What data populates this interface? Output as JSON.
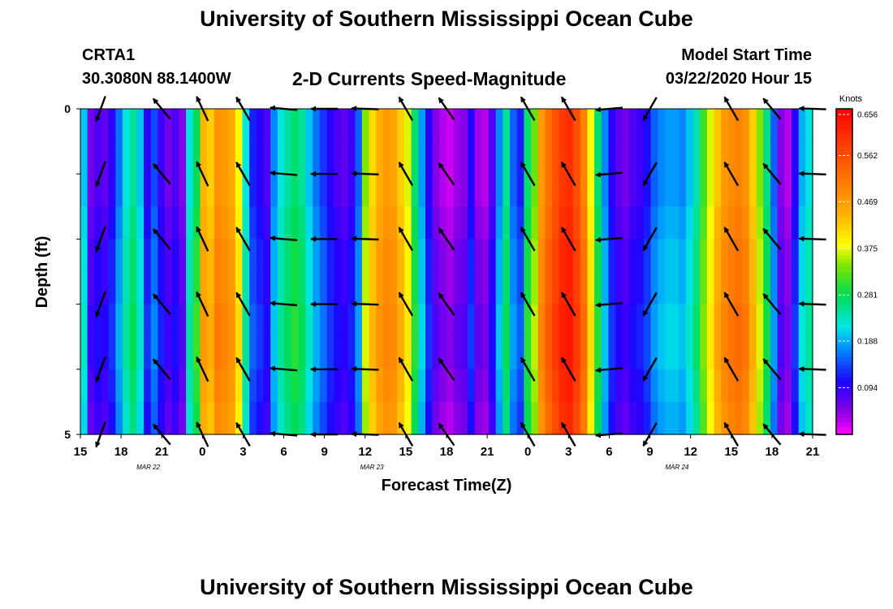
{
  "header": {
    "title": "University of Southern Mississippi Ocean Cube",
    "station_id": "CRTA1",
    "station_coords": "30.3080N 88.1400W",
    "model_start_label": "Model Start Time",
    "model_start_value": "03/22/2020 Hour 15"
  },
  "footer": {
    "title": "University of Southern Mississippi Ocean Cube"
  },
  "chart_data": {
    "type": "heatmap",
    "title": "2-D Currents Speed-Magnitude",
    "xlabel": "Forecast Time(Z)",
    "ylabel": "Depth (ft)",
    "x_unit": "hours since 03/22/2020 15Z",
    "x_range": [
      0,
      54
    ],
    "y_range": [
      0,
      5
    ],
    "x_tick_labels": [
      "15",
      "18",
      "21",
      "0",
      "3",
      "6",
      "9",
      "12",
      "15",
      "18",
      "21",
      "0",
      "3",
      "6",
      "9",
      "12",
      "15",
      "18",
      "21"
    ],
    "y_tick_labels": [
      "0",
      "5"
    ],
    "date_labels": [
      {
        "hour": 5,
        "text": "MAR 22"
      },
      {
        "hour": 21.5,
        "text": "MAR 23"
      },
      {
        "hour": 44,
        "text": "MAR 24"
      }
    ],
    "colorbar": {
      "unit": "Knots",
      "min": 0,
      "max": 0.656,
      "ticks": [
        "0.656",
        "0.562",
        "0.469",
        "0.375",
        "0.281",
        "0.188",
        "0.094"
      ]
    },
    "column_speeds": [
      0.2,
      0.06,
      0.08,
      0.07,
      0.1,
      0.16,
      0.22,
      0.25,
      0.2,
      0.1,
      0.14,
      0.09,
      0.06,
      0.08,
      0.05,
      0.22,
      0.28,
      0.44,
      0.42,
      0.48,
      0.47,
      0.45,
      0.38,
      0.22,
      0.12,
      0.1,
      0.08,
      0.17,
      0.22,
      0.25,
      0.27,
      0.25,
      0.2,
      0.16,
      0.13,
      0.1,
      0.08,
      0.07,
      0.09,
      0.15,
      0.34,
      0.41,
      0.45,
      0.47,
      0.46,
      0.42,
      0.37,
      0.27,
      0.18,
      0.1,
      0.05,
      0.03,
      0.02,
      0.04,
      0.05,
      0.1,
      0.04,
      0.03,
      0.08,
      0.17,
      0.25,
      0.15,
      0.12,
      0.27,
      0.33,
      0.47,
      0.52,
      0.56,
      0.59,
      0.6,
      0.56,
      0.5,
      0.38,
      0.27,
      0.17,
      0.1,
      0.07,
      0.06,
      0.08,
      0.09,
      0.11,
      0.15,
      0.17,
      0.18,
      0.18,
      0.17,
      0.2,
      0.24,
      0.31,
      0.37,
      0.43,
      0.47,
      0.49,
      0.5,
      0.48,
      0.42,
      0.34,
      0.26,
      0.15,
      0.05,
      0.03,
      0.1,
      0.19,
      0.22
    ],
    "depth_rows": [
      "0-0.5",
      "0.5-1",
      "1-1.5",
      "1.5-2",
      "2-2.5",
      "2.5-3",
      "3-3.5",
      "3.5-4",
      "4-4.5",
      "4.5-5"
    ],
    "row_speed_adjust": [
      0.0,
      0.0,
      0.0,
      0.01,
      0.02,
      0.02,
      0.03,
      0.03,
      0.02,
      0.01
    ],
    "vector_depths_ft": [
      0,
      1,
      2,
      3,
      4,
      5
    ],
    "vectors": [
      {
        "hour": 1.5,
        "dir_deg": 200,
        "speed": 0.35
      },
      {
        "hour": 6.0,
        "dir_deg": 320,
        "speed": 0.32
      },
      {
        "hour": 9.0,
        "dir_deg": 335,
        "speed": 0.4
      },
      {
        "hour": 12.0,
        "dir_deg": 330,
        "speed": 0.38
      },
      {
        "hour": 15.0,
        "dir_deg": 275,
        "speed": 0.4
      },
      {
        "hour": 18.0,
        "dir_deg": 270,
        "speed": 0.4
      },
      {
        "hour": 21.0,
        "dir_deg": 272,
        "speed": 0.4
      },
      {
        "hour": 24.0,
        "dir_deg": 330,
        "speed": 0.38
      },
      {
        "hour": 27.0,
        "dir_deg": 325,
        "speed": 0.36
      },
      {
        "hour": 33.0,
        "dir_deg": 330,
        "speed": 0.4
      },
      {
        "hour": 36.0,
        "dir_deg": 330,
        "speed": 0.4
      },
      {
        "hour": 39.0,
        "dir_deg": 265,
        "speed": 0.38
      },
      {
        "hour": 42.0,
        "dir_deg": 210,
        "speed": 0.35
      },
      {
        "hour": 48.0,
        "dir_deg": 330,
        "speed": 0.4
      },
      {
        "hour": 51.0,
        "dir_deg": 320,
        "speed": 0.38
      },
      {
        "hour": 54.0,
        "dir_deg": 272,
        "speed": 0.4
      }
    ]
  }
}
